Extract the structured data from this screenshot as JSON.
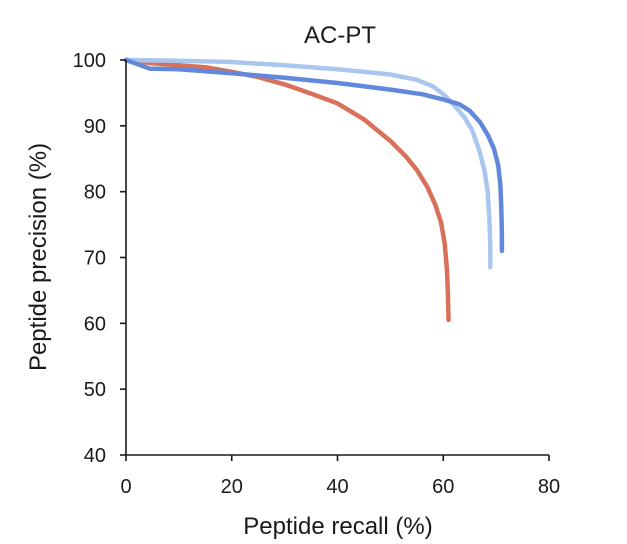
{
  "chart_data": {
    "type": "line",
    "title": "AC-PT",
    "xlabel": "Peptide recall (%)",
    "ylabel": "Peptide precision (%)",
    "xlim": [
      0,
      80
    ],
    "ylim": [
      40,
      100
    ],
    "xticks": [
      "0",
      "20",
      "40",
      "60",
      "80"
    ],
    "yticks": [
      "40",
      "50",
      "60",
      "70",
      "80",
      "90",
      "100"
    ],
    "grid": false,
    "legend": "none",
    "series": [
      {
        "color": "#d9705a",
        "points": [
          [
            0,
            100
          ],
          [
            5,
            99.5
          ],
          [
            10,
            99.2
          ],
          [
            15,
            98.9
          ],
          [
            20,
            98.2
          ],
          [
            25,
            97.4
          ],
          [
            30,
            96.3
          ],
          [
            35,
            94.9
          ],
          [
            40,
            93.4
          ],
          [
            45,
            91
          ],
          [
            50,
            87.7
          ],
          [
            53,
            85.3
          ],
          [
            55,
            83.3
          ],
          [
            57,
            80.7
          ],
          [
            58.5,
            78
          ],
          [
            59.6,
            75.3
          ],
          [
            60.3,
            72
          ],
          [
            60.7,
            68
          ],
          [
            60.9,
            64
          ],
          [
            61,
            60.5
          ]
        ]
      },
      {
        "color": "#a9c7ee",
        "points": [
          [
            0,
            100
          ],
          [
            10,
            99.9
          ],
          [
            20,
            99.7
          ],
          [
            30,
            99.2
          ],
          [
            40,
            98.6
          ],
          [
            50,
            97.8
          ],
          [
            55,
            97
          ],
          [
            58,
            96
          ],
          [
            60,
            94.8
          ],
          [
            62,
            93.2
          ],
          [
            64,
            91.3
          ],
          [
            65.5,
            89.3
          ],
          [
            66.8,
            86.3
          ],
          [
            67.8,
            83.2
          ],
          [
            68.4,
            80
          ],
          [
            68.7,
            76
          ],
          [
            68.9,
            72
          ],
          [
            68.9,
            68.5
          ]
        ]
      },
      {
        "color": "#6288dc",
        "points": [
          [
            0,
            100
          ],
          [
            4.5,
            98.7
          ],
          [
            10,
            98.6
          ],
          [
            20,
            98
          ],
          [
            30,
            97.3
          ],
          [
            40,
            96.5
          ],
          [
            50,
            95.5
          ],
          [
            56,
            94.8
          ],
          [
            60,
            94
          ],
          [
            63,
            93.3
          ],
          [
            65,
            92.3
          ],
          [
            67,
            90.5
          ],
          [
            68.5,
            88.5
          ],
          [
            69.6,
            86.5
          ],
          [
            70.4,
            84
          ],
          [
            70.8,
            81
          ],
          [
            71,
            77
          ],
          [
            71.1,
            73.5
          ],
          [
            71.1,
            71
          ]
        ]
      }
    ]
  }
}
